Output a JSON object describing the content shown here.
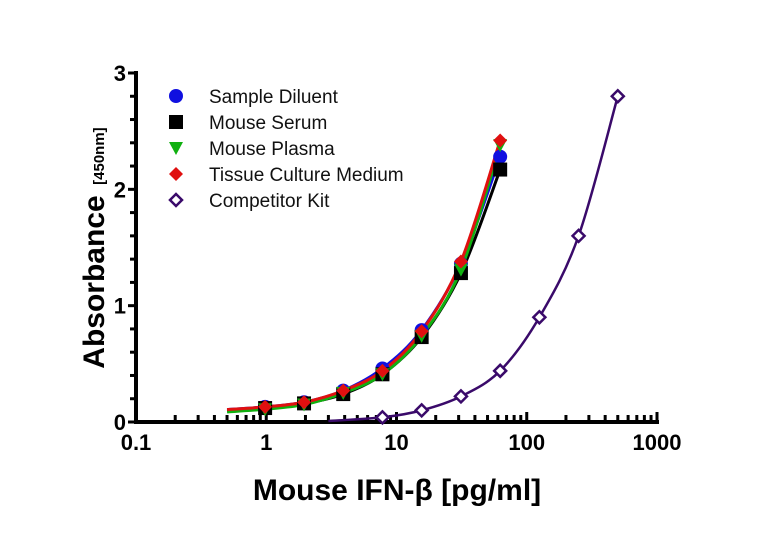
{
  "chart_data": {
    "type": "scatter",
    "title": "",
    "xlabel": "Mouse IFN-β [pg/ml]",
    "ylabel": "Absorbance",
    "ylabel_sub": "[450nm]",
    "xscale": "log",
    "xlim": [
      0.1,
      1000
    ],
    "ylim": [
      0,
      3
    ],
    "xticks": [
      "0.1",
      "1",
      "10",
      "100",
      "1000"
    ],
    "yticks": [
      "0",
      "1",
      "2",
      "3"
    ],
    "grid": false,
    "legend_position": "top-left",
    "series": [
      {
        "name": "Sample Diluent",
        "color": "#1010e0",
        "marker": "circle",
        "curve_from": 0.5,
        "x": [
          0.98,
          1.95,
          3.9,
          7.8,
          15.6,
          31.25,
          62.5
        ],
        "y": [
          0.13,
          0.17,
          0.27,
          0.46,
          0.79,
          1.36,
          2.28
        ]
      },
      {
        "name": "Mouse Serum",
        "color": "#000000",
        "marker": "square",
        "curve_from": 0.5,
        "x": [
          0.98,
          1.95,
          3.9,
          7.8,
          15.6,
          31.25,
          62.5
        ],
        "y": [
          0.12,
          0.16,
          0.24,
          0.41,
          0.73,
          1.28,
          2.17
        ]
      },
      {
        "name": "Mouse Plasma",
        "color": "#10b010",
        "marker": "triangle-down",
        "curve_from": 0.5,
        "x": [
          0.98,
          1.95,
          3.9,
          7.8,
          15.6,
          31.25,
          62.5
        ],
        "y": [
          0.11,
          0.15,
          0.25,
          0.41,
          0.74,
          1.31,
          2.38
        ]
      },
      {
        "name": "Tissue Culture Medium",
        "color": "#e01010",
        "marker": "diamond",
        "curve_from": 0.5,
        "x": [
          0.98,
          1.95,
          3.9,
          7.8,
          15.6,
          31.25,
          62.5
        ],
        "y": [
          0.13,
          0.17,
          0.27,
          0.44,
          0.78,
          1.38,
          2.42
        ]
      },
      {
        "name": "Competitor Kit",
        "color": "#3a0a6a",
        "marker": "diamond-open",
        "curve_from": 3,
        "x": [
          7.8,
          15.6,
          31.25,
          62.5,
          125,
          250,
          500
        ],
        "y": [
          0.04,
          0.1,
          0.22,
          0.44,
          0.9,
          1.6,
          2.8
        ]
      }
    ]
  }
}
